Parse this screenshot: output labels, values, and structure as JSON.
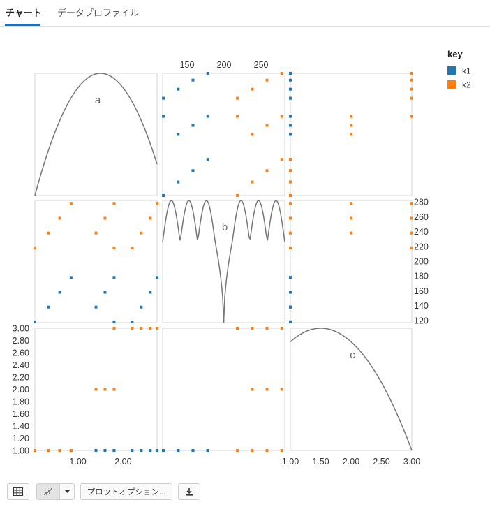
{
  "tabs": [
    {
      "label": "チャート",
      "active": true
    },
    {
      "label": "データプロファイル",
      "active": false
    }
  ],
  "toolbar": {
    "table_icon": "table-icon",
    "chart_icon": "scatter-chart-icon",
    "dropdown_icon": "chevron-down-icon",
    "plot_options_label": "プロットオプション...",
    "download_icon": "download-icon"
  },
  "chart_data": {
    "type": "scatter",
    "subtype": "scatter-matrix",
    "variables": [
      "a",
      "b",
      "c"
    ],
    "ranges": {
      "a": [
        0.05,
        2.75
      ],
      "b": [
        117,
        282
      ],
      "c": [
        1.0,
        3.0
      ]
    },
    "ticks": {
      "a": [
        {
          "v": 1.0,
          "label": "1.00"
        },
        {
          "v": 2.0,
          "label": "2.00"
        }
      ],
      "b": [
        {
          "v": 120,
          "label": "120"
        },
        {
          "v": 140,
          "label": "140"
        },
        {
          "v": 160,
          "label": "160"
        },
        {
          "v": 180,
          "label": "180"
        },
        {
          "v": 200,
          "label": "200"
        },
        {
          "v": 220,
          "label": "220"
        },
        {
          "v": 240,
          "label": "240"
        },
        {
          "v": 260,
          "label": "260"
        },
        {
          "v": 280,
          "label": "280"
        }
      ],
      "b_top": [
        {
          "v": 150,
          "label": "150"
        },
        {
          "v": 200,
          "label": "200"
        },
        {
          "v": 250,
          "label": "250"
        }
      ],
      "c_left": [
        {
          "v": 1.0,
          "label": "1.00"
        },
        {
          "v": 1.2,
          "label": "1.20"
        },
        {
          "v": 1.4,
          "label": "1.40"
        },
        {
          "v": 1.6,
          "label": "1.60"
        },
        {
          "v": 1.8,
          "label": "1.80"
        },
        {
          "v": 2.0,
          "label": "2.00"
        },
        {
          "v": 2.2,
          "label": "2.20"
        },
        {
          "v": 2.4,
          "label": "2.40"
        },
        {
          "v": 2.6,
          "label": "2.60"
        },
        {
          "v": 2.8,
          "label": "2.80"
        },
        {
          "v": 3.0,
          "label": "3.00"
        }
      ],
      "c_bottom": [
        {
          "v": 1.0,
          "label": "1.00"
        },
        {
          "v": 1.5,
          "label": "1.50"
        },
        {
          "v": 2.0,
          "label": "2.00"
        },
        {
          "v": 2.5,
          "label": "2.50"
        },
        {
          "v": 3.0,
          "label": "3.00"
        }
      ]
    },
    "legend": {
      "title": "key",
      "position": "top-right",
      "items": [
        {
          "name": "k1",
          "color": "#1f77b4"
        },
        {
          "name": "k2",
          "color": "#ff7f0e"
        }
      ]
    },
    "series": [
      {
        "name": "k1",
        "color": "#1f77b4",
        "points": [
          {
            "a": 0.05,
            "b": 118,
            "c": 1
          },
          {
            "a": 0.35,
            "b": 138,
            "c": 1
          },
          {
            "a": 0.6,
            "b": 158,
            "c": 1
          },
          {
            "a": 0.85,
            "b": 178,
            "c": 1
          },
          {
            "a": 1.4,
            "b": 138,
            "c": 1
          },
          {
            "a": 1.6,
            "b": 158,
            "c": 1
          },
          {
            "a": 1.8,
            "b": 178,
            "c": 1
          },
          {
            "a": 1.8,
            "b": 118,
            "c": 1
          },
          {
            "a": 2.2,
            "b": 118,
            "c": 1
          },
          {
            "a": 2.4,
            "b": 138,
            "c": 1
          },
          {
            "a": 2.6,
            "b": 158,
            "c": 1
          },
          {
            "a": 2.75,
            "b": 178,
            "c": 1
          }
        ]
      },
      {
        "name": "k2",
        "color": "#ff7f0e",
        "points": [
          {
            "a": 0.05,
            "b": 218,
            "c": 1
          },
          {
            "a": 0.35,
            "b": 238,
            "c": 1
          },
          {
            "a": 0.6,
            "b": 258,
            "c": 1
          },
          {
            "a": 0.85,
            "b": 278,
            "c": 1
          },
          {
            "a": 1.4,
            "b": 238,
            "c": 2
          },
          {
            "a": 1.6,
            "b": 258,
            "c": 2
          },
          {
            "a": 1.8,
            "b": 278,
            "c": 2
          },
          {
            "a": 1.8,
            "b": 218,
            "c": 3
          },
          {
            "a": 2.2,
            "b": 218,
            "c": 3
          },
          {
            "a": 2.4,
            "b": 238,
            "c": 3
          },
          {
            "a": 2.6,
            "b": 258,
            "c": 3
          },
          {
            "a": 2.75,
            "b": 278,
            "c": 3
          }
        ]
      }
    ],
    "diagonal": [
      {
        "variable": "a",
        "label": "a",
        "peak_at": 1.5
      },
      {
        "variable": "b",
        "label": "b"
      },
      {
        "variable": "c",
        "label": "c",
        "peak_at": 1.5
      }
    ]
  }
}
